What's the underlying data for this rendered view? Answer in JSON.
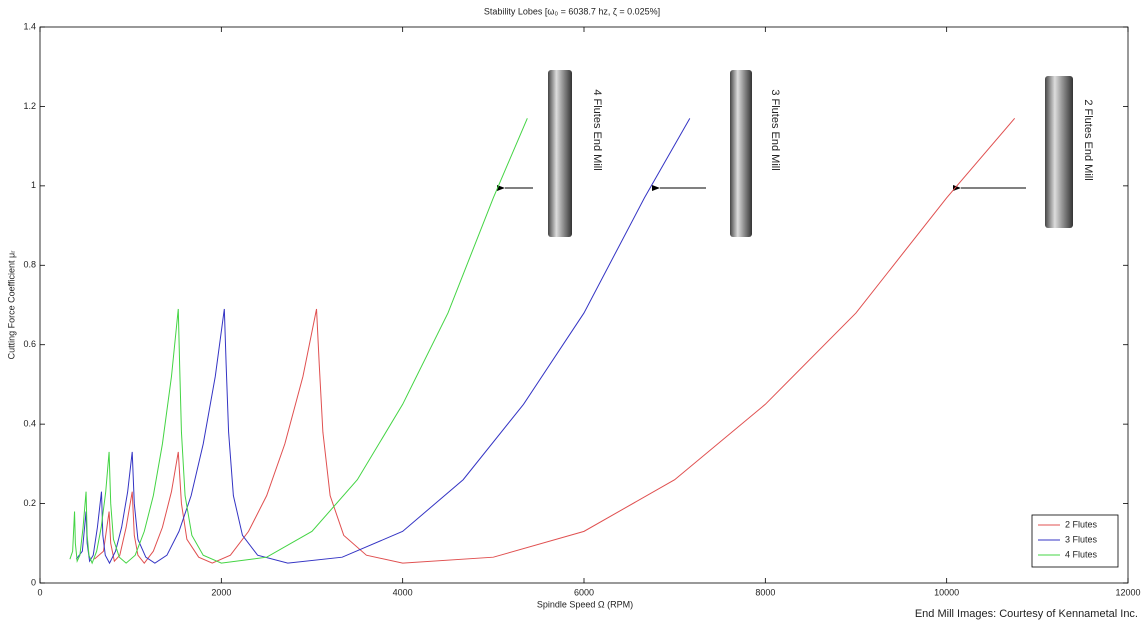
{
  "chart_data": {
    "type": "line",
    "title": "Stability Lobes [ω₀ = 6038.7 hz, ζ = 0.025%]",
    "xlabel": "Spindle Speed Ω (RPM)",
    "ylabel": "Cutting Force Coefficient μᵣ",
    "footer": "End Mill Images: Courtesy of Kennametal Inc.",
    "annotations": [
      "4 Flutes End Mill",
      "3 Flutes End Mill",
      "2 Flutes End Mill"
    ],
    "xlim": [
      0,
      12000
    ],
    "ylim": [
      0,
      1.4
    ],
    "xticks": [
      0,
      2000,
      4000,
      6000,
      8000,
      10000,
      12000
    ],
    "yticks": [
      0,
      0.2,
      0.4,
      0.6,
      0.8,
      1,
      1.2,
      1.4
    ],
    "grid": false,
    "legend": "lower right",
    "series": [
      {
        "name": "2 Flutes",
        "color": "#e05050",
        "x": [
          600,
          700,
          762,
          780,
          820,
          880,
          950,
          1017,
          1040,
          1080,
          1150,
          1250,
          1350,
          1450,
          1525,
          1560,
          1620,
          1750,
          1900,
          2100,
          2300,
          2500,
          2700,
          2900,
          3050,
          3080,
          3120,
          3200,
          3350,
          3600,
          4000,
          5000,
          6000,
          7000,
          8000,
          9000,
          10000,
          10750
        ],
        "values": [
          0.06,
          0.08,
          0.18,
          0.1,
          0.055,
          0.07,
          0.14,
          0.23,
          0.12,
          0.07,
          0.05,
          0.08,
          0.14,
          0.23,
          0.33,
          0.2,
          0.11,
          0.065,
          0.05,
          0.07,
          0.13,
          0.22,
          0.35,
          0.52,
          0.69,
          0.55,
          0.38,
          0.22,
          0.12,
          0.07,
          0.05,
          0.065,
          0.13,
          0.26,
          0.45,
          0.68,
          0.97,
          1.17
        ]
      },
      {
        "name": "3 Flutes",
        "color": "#3434c4",
        "x": [
          400,
          467,
          508,
          520,
          547,
          587,
          633,
          678,
          693,
          720,
          767,
          833,
          900,
          967,
          1017,
          1040,
          1080,
          1167,
          1267,
          1400,
          1533,
          1667,
          1800,
          1933,
          2033,
          2053,
          2080,
          2133,
          2233,
          2400,
          2733,
          3333,
          4000,
          4667,
          5333,
          6000,
          6667,
          7167
        ],
        "values": [
          0.06,
          0.08,
          0.18,
          0.1,
          0.055,
          0.07,
          0.14,
          0.23,
          0.12,
          0.07,
          0.05,
          0.08,
          0.14,
          0.23,
          0.33,
          0.2,
          0.11,
          0.065,
          0.05,
          0.07,
          0.13,
          0.22,
          0.35,
          0.52,
          0.69,
          0.55,
          0.38,
          0.22,
          0.12,
          0.07,
          0.05,
          0.065,
          0.13,
          0.26,
          0.45,
          0.68,
          0.97,
          1.17
        ]
      },
      {
        "name": "4 Flutes",
        "color": "#44d444",
        "x": [
          330,
          360,
          381,
          390,
          410,
          440,
          475,
          508,
          520,
          540,
          575,
          625,
          675,
          725,
          762,
          780,
          810,
          875,
          950,
          1050,
          1150,
          1250,
          1350,
          1450,
          1525,
          1540,
          1560,
          1600,
          1675,
          1800,
          2000,
          2500,
          3000,
          3500,
          4000,
          4500,
          5000,
          5375
        ],
        "values": [
          0.06,
          0.08,
          0.18,
          0.1,
          0.055,
          0.07,
          0.14,
          0.23,
          0.12,
          0.07,
          0.05,
          0.08,
          0.14,
          0.23,
          0.33,
          0.2,
          0.11,
          0.065,
          0.05,
          0.07,
          0.13,
          0.22,
          0.35,
          0.52,
          0.69,
          0.55,
          0.38,
          0.22,
          0.12,
          0.07,
          0.05,
          0.065,
          0.13,
          0.26,
          0.45,
          0.68,
          0.97,
          1.17
        ]
      }
    ]
  }
}
